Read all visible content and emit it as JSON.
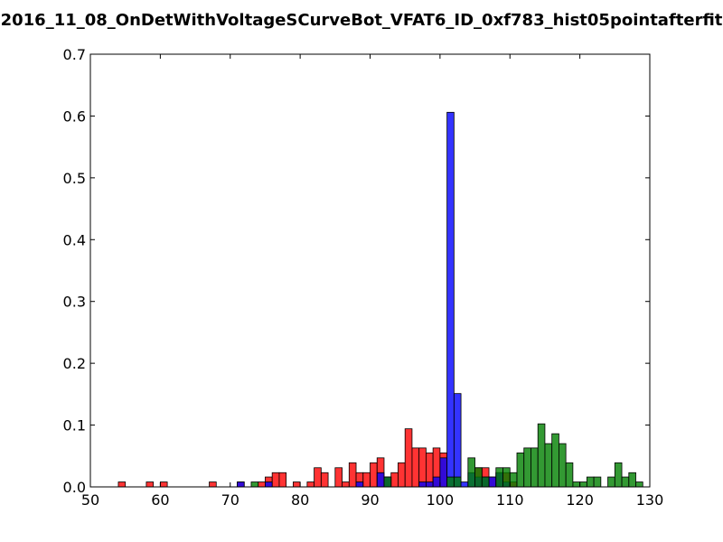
{
  "chart_data": {
    "type": "bar",
    "title": "2016_11_08_OnDetWithVoltageSCurveBot_VFAT6_ID_0xf783_hist05pointafterfit",
    "xlabel": "",
    "ylabel": "",
    "xlim": [
      50,
      130
    ],
    "ylim": [
      0,
      0.7
    ],
    "x_ticks": [
      "50",
      "60",
      "70",
      "80",
      "90",
      "100",
      "110",
      "120",
      "130"
    ],
    "y_ticks": [
      "0.0",
      "0.1",
      "0.2",
      "0.3",
      "0.4",
      "0.5",
      "0.6",
      "0.7"
    ],
    "grid": false,
    "bin_width": 1,
    "series": [
      {
        "color": "#ff0000",
        "bins": [
          [
            54,
            0.008
          ],
          [
            58,
            0.008
          ],
          [
            60,
            0.008
          ],
          [
            67,
            0.008
          ],
          [
            71,
            0.008
          ],
          [
            74,
            0.008
          ],
          [
            75,
            0.016
          ],
          [
            76,
            0.023
          ],
          [
            77,
            0.023
          ],
          [
            79,
            0.008
          ],
          [
            81,
            0.008
          ],
          [
            82,
            0.031
          ],
          [
            83,
            0.023
          ],
          [
            85,
            0.031
          ],
          [
            86,
            0.008
          ],
          [
            87,
            0.039
          ],
          [
            88,
            0.023
          ],
          [
            89,
            0.023
          ],
          [
            90,
            0.039
          ],
          [
            91,
            0.047
          ],
          [
            92,
            0.016
          ],
          [
            93,
            0.023
          ],
          [
            94,
            0.039
          ],
          [
            95,
            0.094
          ],
          [
            96,
            0.063
          ],
          [
            97,
            0.063
          ],
          [
            98,
            0.055
          ],
          [
            99,
            0.063
          ],
          [
            100,
            0.055
          ],
          [
            105,
            0.031
          ],
          [
            106,
            0.031
          ],
          [
            107,
            0.016
          ],
          [
            108,
            0.023
          ],
          [
            109,
            0.023
          ],
          [
            110,
            0.008
          ]
        ]
      },
      {
        "color": "#0000ff",
        "bins": [
          [
            71,
            0.008
          ],
          [
            75,
            0.008
          ],
          [
            88,
            0.008
          ],
          [
            91,
            0.023
          ],
          [
            92,
            0.016
          ],
          [
            97,
            0.008
          ],
          [
            98,
            0.008
          ],
          [
            99,
            0.016
          ],
          [
            100,
            0.047
          ],
          [
            101,
            0.606
          ],
          [
            102,
            0.151
          ],
          [
            103,
            0.008
          ],
          [
            104,
            0.023
          ],
          [
            105,
            0.016
          ],
          [
            106,
            0.016
          ],
          [
            107,
            0.016
          ],
          [
            108,
            0.023
          ],
          [
            109,
            0.008
          ]
        ]
      },
      {
        "color": "#008000",
        "bins": [
          [
            73,
            0.008
          ],
          [
            92,
            0.016
          ],
          [
            101,
            0.016
          ],
          [
            102,
            0.016
          ],
          [
            104,
            0.047
          ],
          [
            105,
            0.031
          ],
          [
            106,
            0.016
          ],
          [
            108,
            0.031
          ],
          [
            109,
            0.031
          ],
          [
            110,
            0.023
          ],
          [
            111,
            0.055
          ],
          [
            112,
            0.063
          ],
          [
            113,
            0.063
          ],
          [
            114,
            0.102
          ],
          [
            115,
            0.07
          ],
          [
            116,
            0.086
          ],
          [
            117,
            0.07
          ],
          [
            118,
            0.039
          ],
          [
            119,
            0.008
          ],
          [
            120,
            0.008
          ],
          [
            121,
            0.016
          ],
          [
            122,
            0.016
          ],
          [
            124,
            0.016
          ],
          [
            125,
            0.039
          ],
          [
            126,
            0.016
          ],
          [
            127,
            0.023
          ],
          [
            128,
            0.008
          ]
        ]
      }
    ]
  }
}
